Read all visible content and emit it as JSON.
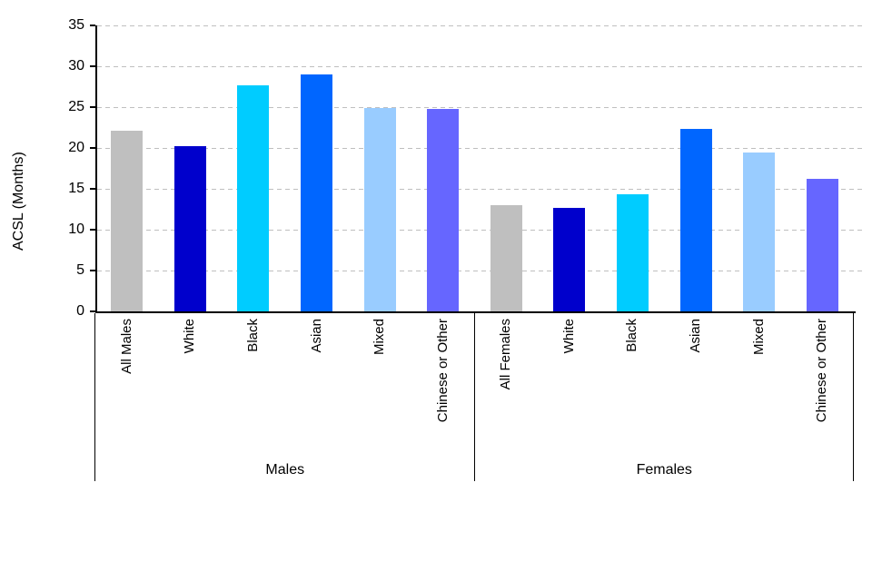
{
  "chart_data": {
    "type": "bar",
    "title": "",
    "xlabel": "",
    "ylabel": "ACSL (Months)",
    "ylim": [
      0,
      35
    ],
    "yticks": [
      0,
      5,
      10,
      15,
      20,
      25,
      30,
      35
    ],
    "grid": "horizontal-dashed",
    "gridline_color": "#BFBFBF",
    "axis_color": "#000000",
    "legend": "none",
    "bar_colors": [
      "#BFBFBF",
      "#0000CC",
      "#00CCFF",
      "#0066FF",
      "#99CCFF",
      "#6666FF"
    ],
    "groups": [
      {
        "label": "Males",
        "categories": [
          "All Males",
          "White",
          "Black",
          "Asian",
          "Mixed",
          "Chinese or Other"
        ],
        "values": [
          22.1,
          20.2,
          27.7,
          29.0,
          24.9,
          24.8
        ]
      },
      {
        "label": "Females",
        "categories": [
          "All Females",
          "White",
          "Black",
          "Asian",
          "Mixed",
          "Chinese or Other"
        ],
        "values": [
          13.0,
          12.7,
          14.3,
          22.3,
          19.4,
          16.2
        ]
      }
    ]
  }
}
